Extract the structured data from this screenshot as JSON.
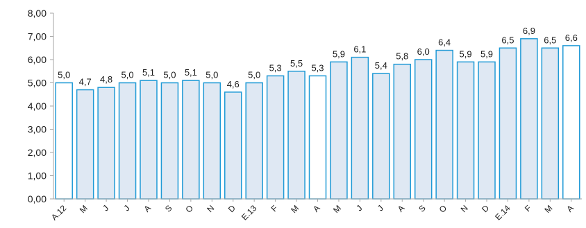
{
  "chart_data": {
    "type": "bar",
    "categories": [
      "A.12",
      "M",
      "J",
      "J",
      "A",
      "S",
      "O",
      "N",
      "D",
      "E.13",
      "F",
      "M",
      "A",
      "M",
      "J",
      "J",
      "A",
      "S",
      "O",
      "N",
      "D",
      "E.14",
      "F",
      "M",
      "A"
    ],
    "values": [
      5.0,
      4.7,
      4.8,
      5.0,
      5.1,
      5.0,
      5.1,
      5.0,
      4.6,
      5.0,
      5.3,
      5.5,
      5.3,
      5.9,
      6.1,
      5.4,
      5.8,
      6.0,
      6.4,
      5.9,
      5.9,
      6.5,
      6.9,
      6.5,
      6.6
    ],
    "value_labels": [
      "5,0",
      "4,7",
      "4,8",
      "5,0",
      "5,1",
      "5,0",
      "5,1",
      "5,0",
      "4,6",
      "5,0",
      "5,3",
      "5,5",
      "5,3",
      "5,9",
      "6,1",
      "5,4",
      "5,8",
      "6,0",
      "6,4",
      "5,9",
      "5,9",
      "6,5",
      "6,9",
      "6,5",
      "6,6"
    ],
    "highlighted": [
      true,
      false,
      false,
      false,
      false,
      false,
      false,
      false,
      false,
      false,
      false,
      false,
      true,
      false,
      false,
      false,
      false,
      false,
      false,
      false,
      false,
      false,
      false,
      false,
      true
    ],
    "ylim": [
      0,
      8
    ],
    "yticks": [
      "0,00",
      "1,00",
      "2,00",
      "3,00",
      "4,00",
      "5,00",
      "6,00",
      "7,00",
      "8,00"
    ],
    "title": "",
    "xlabel": "",
    "ylabel": "",
    "grid": false,
    "colors": {
      "bar_fill": "#dfe8f3",
      "bar_highlight_fill": "#ffffff",
      "bar_stroke": "#1f9ad6",
      "axis": "#a6a6a6"
    }
  }
}
